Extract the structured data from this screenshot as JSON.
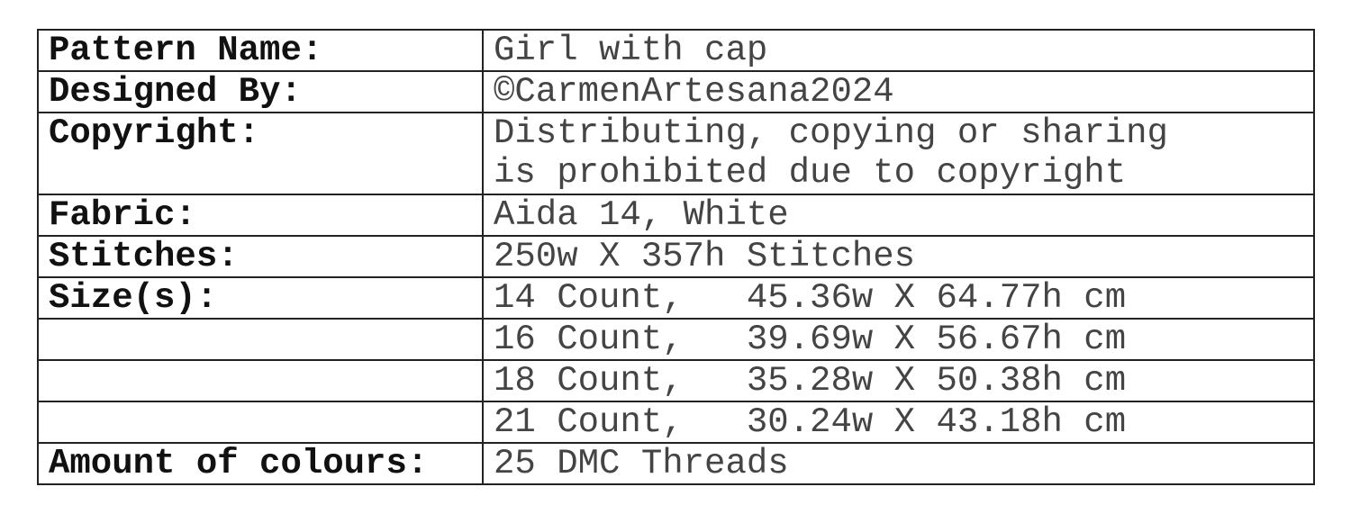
{
  "rows": [
    {
      "label": "Pattern Name:",
      "value": "Girl with cap"
    },
    {
      "label": "Designed By:",
      "value": "©CarmenArtesana2024"
    },
    {
      "label": "Copyright:",
      "value": "Distributing, copying or sharing\nis prohibited due to copyright"
    },
    {
      "label": "Fabric:",
      "value": "Aida 14, White"
    },
    {
      "label": "Stitches:",
      "value": "250w X 357h Stitches"
    },
    {
      "label": "Size(s):",
      "value": "14 Count,   45.36w X 64.77h cm"
    },
    {
      "label": "",
      "value": "16 Count,   39.69w X 56.67h cm"
    },
    {
      "label": "",
      "value": "18 Count,   35.28w X 50.38h cm"
    },
    {
      "label": "",
      "value": "21 Count,   30.24w X 43.18h cm"
    },
    {
      "label": "Amount of colours:",
      "value": "25 DMC Threads"
    }
  ]
}
